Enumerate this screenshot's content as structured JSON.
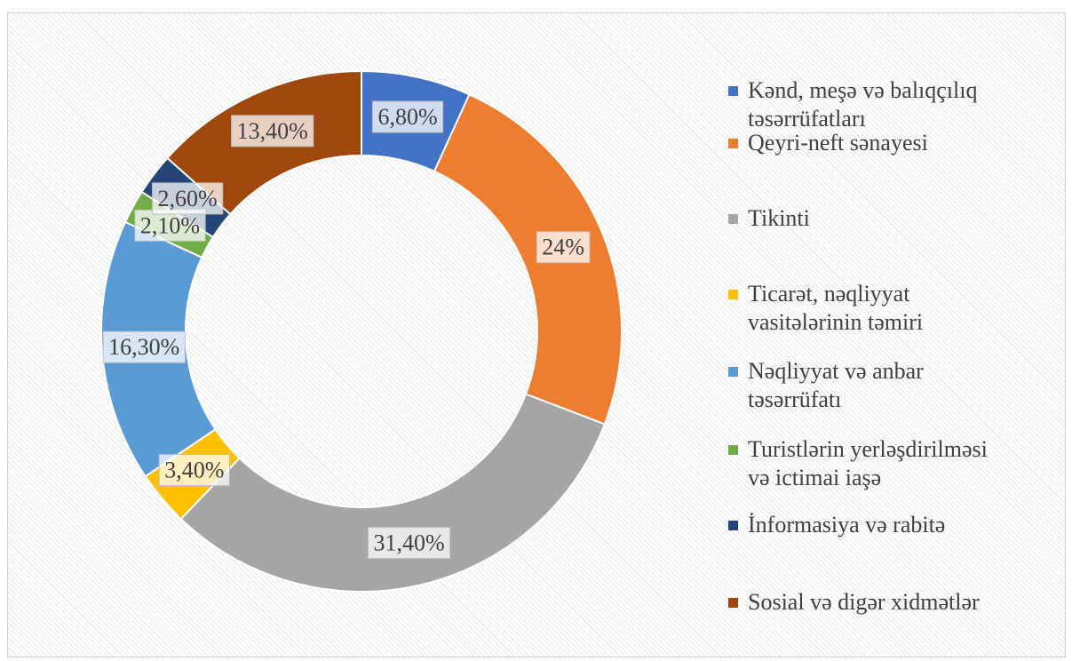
{
  "chart_data": {
    "type": "donut",
    "categories": [
      "Kənd, meşə və balıqçılıq təsərrüfatları",
      "Qeyri-neft sənayesi",
      "Tikinti",
      "Ticarət, nəqliyyat vasitələrinin təmiri",
      "Nəqliyyat və anbar təsərrüfatı",
      "Turistlərin yerləşdirilməsi və ictimai iaşə",
      "İnformasiya və rabitə",
      "Sosial və digər xidmətlər"
    ],
    "values": [
      6.8,
      24,
      31.4,
      3.4,
      16.3,
      2.1,
      2.6,
      13.4
    ],
    "value_labels": [
      "6,80%",
      "24%",
      "31,40%",
      "3,40%",
      "16,30%",
      "2,10%",
      "2,60%",
      "13,40%"
    ],
    "colors": [
      "#4472c4",
      "#ed7d31",
      "#a5a5a5",
      "#ffc000",
      "#5b9bd5",
      "#70ad47",
      "#264478",
      "#9e480e"
    ],
    "legend": "right"
  }
}
